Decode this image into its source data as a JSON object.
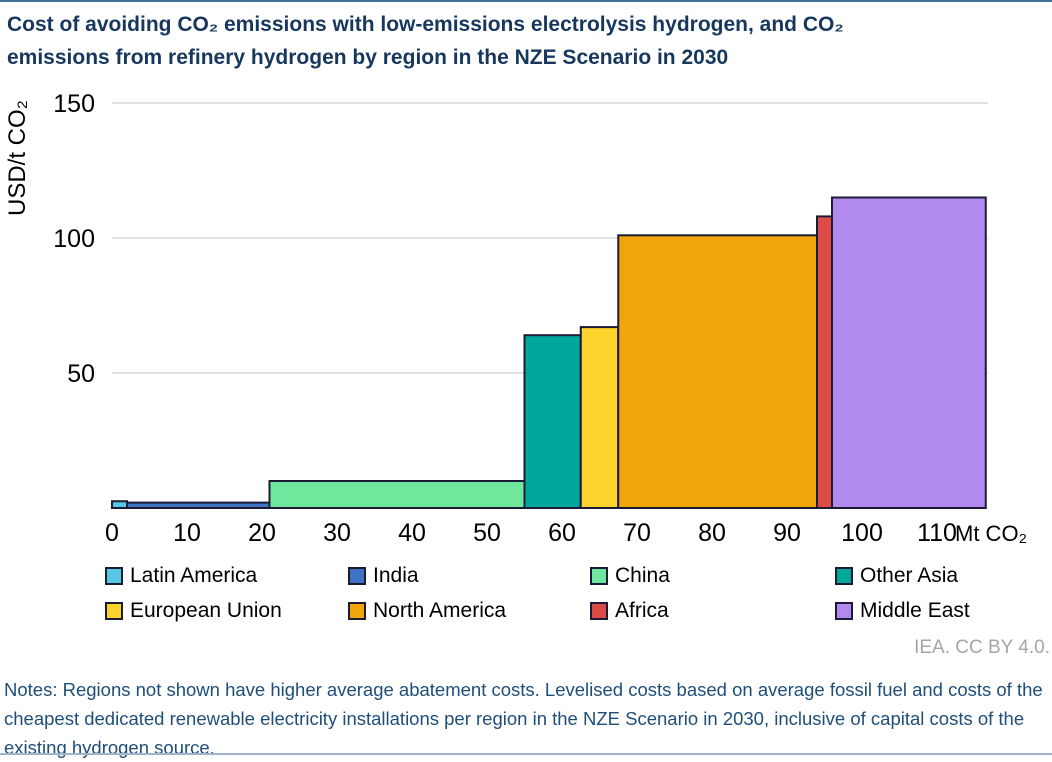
{
  "page": {
    "title_line1": "Cost of avoiding CO₂ emissions with low-emissions electrolysis hydrogen, and CO₂",
    "title_line2": "emissions from refinery hydrogen by region in the NZE Scenario in 2030",
    "credit": "IEA. CC BY 4.0.",
    "notes": "Notes: Regions not shown have higher average abatement costs. Levelised costs based on average fossil fuel and costs of the cheapest dedicated renewable electricity installations per region in the NZE Scenario in 2030, inclusive of capital costs of the existing hydrogen source."
  },
  "colors": {
    "title_text": "#17375E",
    "notes_text": "#1F4E79",
    "top_border": "#41719C",
    "gridline": "#D9D9D9",
    "axis_text": "#000000",
    "credit_text": "#A6A6A6",
    "bar_border": "#1B1B35"
  },
  "chart_data": {
    "type": "bar",
    "variant": "abatement-cost-step-chart",
    "title": "Cost of avoiding CO₂ emissions with low-emissions electrolysis hydrogen, and CO₂ emissions from refinery hydrogen by region in the NZE Scenario in 2030",
    "xlabel": "Mt CO₂",
    "ylabel": "USD/t CO₂",
    "x_ticks": [
      0,
      10,
      20,
      30,
      40,
      50,
      60,
      70,
      80,
      90,
      100,
      110
    ],
    "y_ticks": [
      50,
      100,
      150
    ],
    "xlim": [
      0,
      117
    ],
    "ylim": [
      0,
      150
    ],
    "grid": "horizontal",
    "legend_position": "bottom",
    "series": [
      {
        "name": "Latin America",
        "color": "#55C8E8",
        "x_start": 0,
        "x_end": 2,
        "cost_usd_per_t": 2.5
      },
      {
        "name": "India",
        "color": "#3E72C4",
        "x_start": 2,
        "x_end": 21,
        "cost_usd_per_t": 2
      },
      {
        "name": "China",
        "color": "#6FE89E",
        "x_start": 21,
        "x_end": 55,
        "cost_usd_per_t": 10
      },
      {
        "name": "Other Asia",
        "color": "#00A89C",
        "x_start": 55,
        "x_end": 62.5,
        "cost_usd_per_t": 64
      },
      {
        "name": "European Union",
        "color": "#FCD32B",
        "x_start": 62.5,
        "x_end": 67.5,
        "cost_usd_per_t": 67
      },
      {
        "name": "North America",
        "color": "#F0A60A",
        "x_start": 67.5,
        "x_end": 94,
        "cost_usd_per_t": 101
      },
      {
        "name": "Africa",
        "color": "#DD4B47",
        "x_start": 94,
        "x_end": 96,
        "cost_usd_per_t": 108
      },
      {
        "name": "Middle East",
        "color": "#B289EC",
        "x_start": 96,
        "x_end": 116.5,
        "cost_usd_per_t": 115
      }
    ]
  }
}
